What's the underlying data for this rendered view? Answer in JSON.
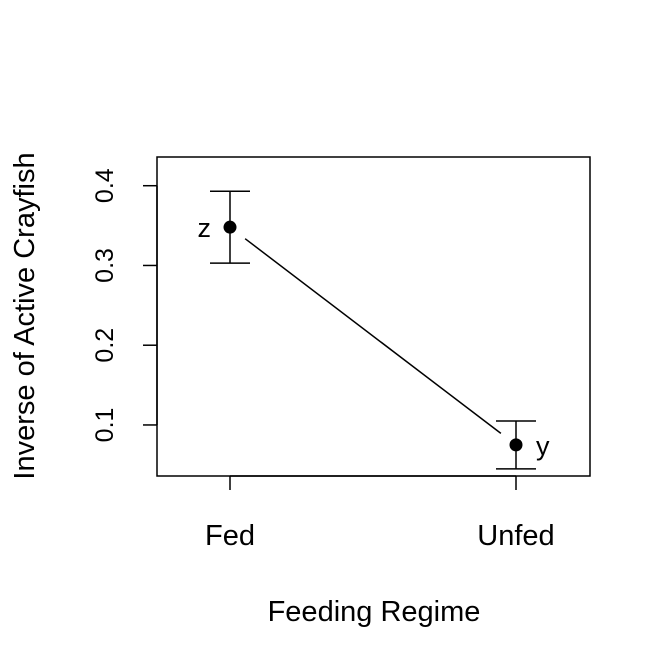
{
  "chart_data": {
    "type": "scatter",
    "title": "",
    "xlabel": "Feeding Regime",
    "ylabel": "Inverse of Active Crayfish",
    "categories": [
      "Fed",
      "Unfed"
    ],
    "points": [
      {
        "category": "Fed",
        "value": 0.348,
        "lower": 0.303,
        "upper": 0.393,
        "letter": "z"
      },
      {
        "category": "Unfed",
        "value": 0.075,
        "lower": 0.045,
        "upper": 0.105,
        "letter": "y"
      }
    ],
    "yticks": [
      "0.1",
      "0.2",
      "0.3",
      "0.4"
    ],
    "ylim": [
      0.036,
      0.436
    ],
    "grid": false,
    "connect_points": true
  }
}
